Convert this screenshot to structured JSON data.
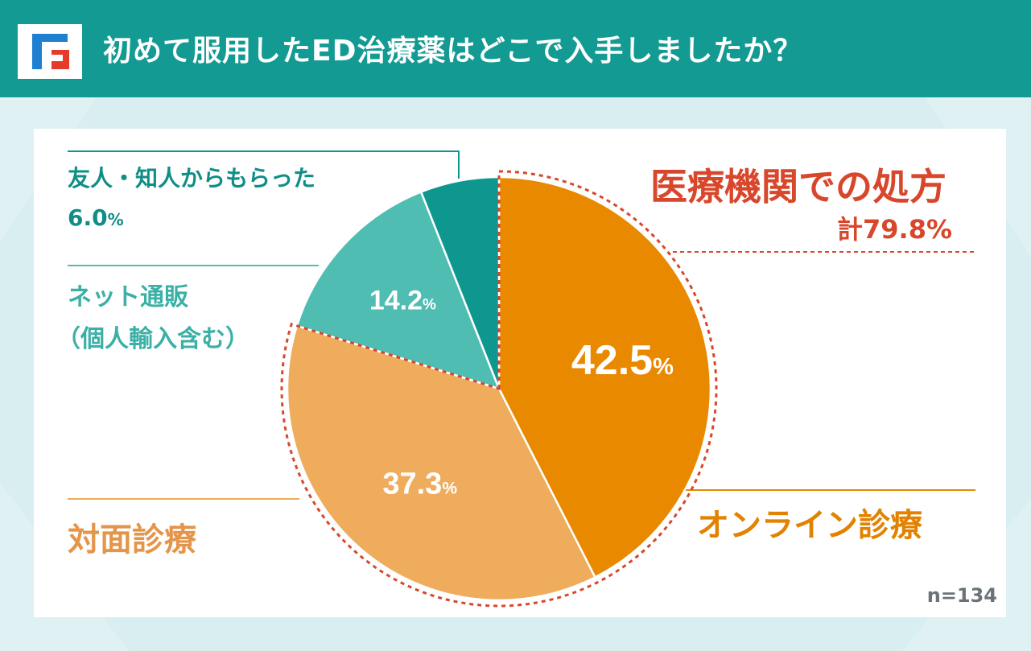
{
  "header": {
    "title": "初めて服用したED治療薬はどこで入手しましたか？",
    "logo_letter": "F"
  },
  "colors": {
    "header_bg": "#139a93",
    "online": "#e98900",
    "in_person": "#eeac5c",
    "net": "#4fbdb2",
    "friend": "#0e978f",
    "medical_accent": "#d8472b"
  },
  "labels": {
    "friend_name": "友人・知人からもらった",
    "friend_value": "6.0",
    "net_name_line1": "ネット通販",
    "net_name_line2": "（個人輸入含む）",
    "medical_title": "医療機関での処方",
    "medical_total": "計79.8%",
    "online_name": "オンライン診療",
    "in_person_name": "対面診療",
    "percent_sign": "%",
    "sample_size": "n=134"
  },
  "chart_data": {
    "type": "pie",
    "title": "初めて服用したED治療薬はどこで入手しましたか？",
    "note": "n=134",
    "group": {
      "name": "医療機関での処方",
      "total": "計79.8%",
      "members": [
        "オンライン診療",
        "対面診療"
      ]
    },
    "slices": [
      {
        "name": "オンライン診療",
        "value": 42.5,
        "label": "42.5",
        "color": "#e98900"
      },
      {
        "name": "対面診療",
        "value": 37.3,
        "label": "37.3",
        "color": "#eeac5c"
      },
      {
        "name": "ネット通販（個人輸入含む）",
        "value": 14.2,
        "label": "14.2",
        "color": "#4fbdb2"
      },
      {
        "name": "友人・知人からもらった",
        "value": 6.0,
        "label": "6.0",
        "color": "#0e978f"
      }
    ]
  }
}
